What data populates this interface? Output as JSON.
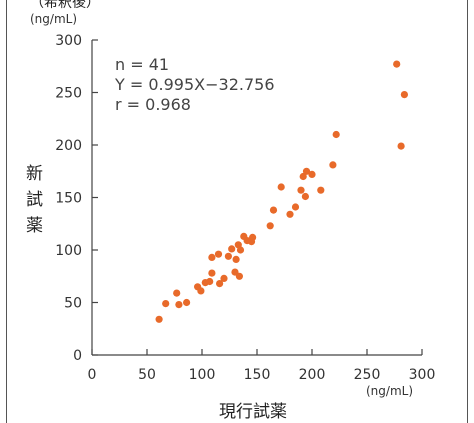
{
  "top_fragment": "（希釈後）",
  "chart_data": {
    "type": "scatter",
    "xlabel": "現行試薬",
    "ylabel_chars": [
      "新",
      "試",
      "薬"
    ],
    "x_unit": "(ng/mL)",
    "y_unit": "(ng/mL)",
    "xlim": [
      0,
      300
    ],
    "ylim": [
      0,
      300
    ],
    "x_ticks": [
      "0",
      "50",
      "100",
      "150",
      "200",
      "250",
      "300"
    ],
    "y_ticks": [
      "0",
      "50",
      "100",
      "150",
      "200",
      "250",
      "300"
    ],
    "stats": [
      "n = 41",
      "Y = 0.995X−32.756",
      "r = 0.968"
    ],
    "marker_color": "#e86a2a",
    "points": [
      [
        61,
        34
      ],
      [
        67,
        49
      ],
      [
        77,
        59
      ],
      [
        79,
        48
      ],
      [
        86,
        50
      ],
      [
        96,
        65
      ],
      [
        99,
        61
      ],
      [
        103,
        69
      ],
      [
        107,
        70
      ],
      [
        109,
        78
      ],
      [
        109,
        93
      ],
      [
        115,
        96
      ],
      [
        116,
        68
      ],
      [
        120,
        73
      ],
      [
        124,
        94
      ],
      [
        127,
        101
      ],
      [
        130,
        79
      ],
      [
        131,
        91
      ],
      [
        133,
        105
      ],
      [
        134,
        75
      ],
      [
        135,
        100
      ],
      [
        138,
        113
      ],
      [
        141,
        109
      ],
      [
        145,
        108
      ],
      [
        146,
        112
      ],
      [
        162,
        123
      ],
      [
        165,
        138
      ],
      [
        172,
        160
      ],
      [
        180,
        134
      ],
      [
        185,
        141
      ],
      [
        190,
        157
      ],
      [
        192,
        170
      ],
      [
        194,
        151
      ],
      [
        195,
        175
      ],
      [
        200,
        172
      ],
      [
        208,
        157
      ],
      [
        219,
        181
      ],
      [
        222,
        210
      ],
      [
        277,
        277
      ],
      [
        281,
        199
      ],
      [
        284,
        248
      ]
    ]
  }
}
